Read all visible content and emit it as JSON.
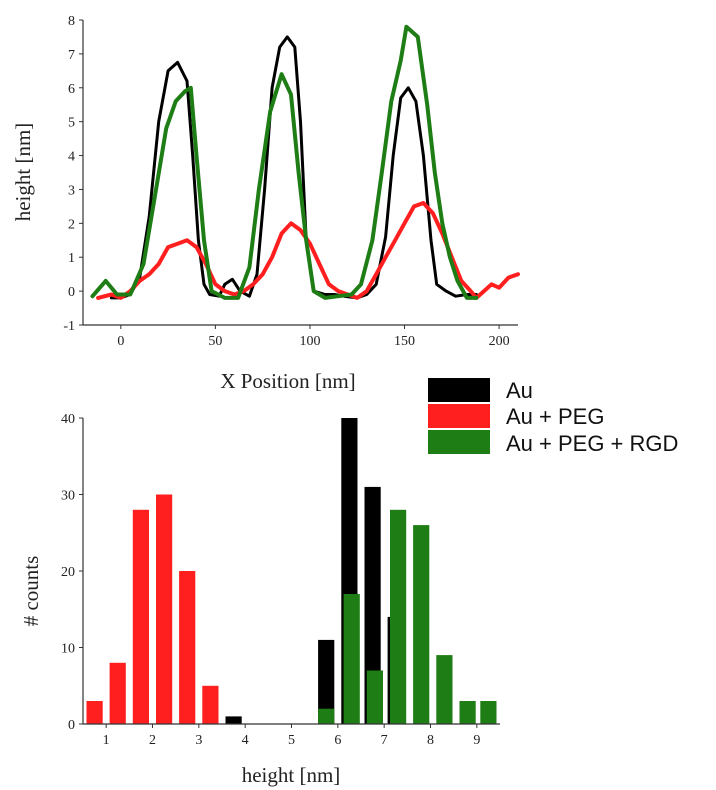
{
  "colors": {
    "Au": "#000000",
    "Au + PEG": "#ff1f1f",
    "Au + PEG + RGD": "#1e7d15",
    "axis": "#333333"
  },
  "legend": {
    "entries": [
      "Au",
      "Au + PEG",
      "Au + PEG + RGD"
    ],
    "placement": "top-right of lower panel"
  },
  "chart_data": [
    {
      "type": "line",
      "xlabel": "X Position [nm]",
      "ylabel": "height [nm]",
      "xlim": [
        -20,
        210
      ],
      "ylim": [
        -1,
        8
      ],
      "xticks": [
        0,
        50,
        100,
        150,
        200
      ],
      "yticks": [
        -1,
        0,
        1,
        2,
        3,
        4,
        5,
        6,
        7,
        8
      ],
      "grid": false,
      "series": [
        {
          "name": "Au",
          "points": [
            [
              -5,
              -0.2
            ],
            [
              0,
              -0.2
            ],
            [
              5,
              -0.1
            ],
            [
              10,
              0.4
            ],
            [
              15,
              2.2
            ],
            [
              20,
              5.0
            ],
            [
              25,
              6.5
            ],
            [
              30,
              6.75
            ],
            [
              35,
              6.2
            ],
            [
              38,
              4.0
            ],
            [
              41,
              1.5
            ],
            [
              44,
              0.2
            ],
            [
              47,
              -0.1
            ],
            [
              52,
              -0.15
            ],
            [
              55,
              0.2
            ],
            [
              59,
              0.35
            ],
            [
              63,
              0.0
            ],
            [
              68,
              -0.15
            ],
            [
              72,
              0.5
            ],
            [
              76,
              3.0
            ],
            [
              80,
              6.0
            ],
            [
              84,
              7.2
            ],
            [
              88,
              7.5
            ],
            [
              92,
              7.2
            ],
            [
              95,
              5.0
            ],
            [
              98,
              1.5
            ],
            [
              102,
              0.0
            ],
            [
              108,
              -0.1
            ],
            [
              113,
              -0.1
            ],
            [
              118,
              -0.15
            ],
            [
              125,
              -0.2
            ],
            [
              130,
              -0.1
            ],
            [
              135,
              0.2
            ],
            [
              140,
              1.6
            ],
            [
              144,
              4.0
            ],
            [
              148,
              5.7
            ],
            [
              152,
              6.0
            ],
            [
              156,
              5.6
            ],
            [
              160,
              4.0
            ],
            [
              164,
              1.5
            ],
            [
              167,
              0.2
            ],
            [
              172,
              0.0
            ],
            [
              177,
              -0.15
            ],
            [
              183,
              -0.1
            ],
            [
              188,
              -0.1
            ]
          ]
        },
        {
          "name": "Au + PEG",
          "points": [
            [
              -12,
              -0.2
            ],
            [
              -5,
              -0.1
            ],
            [
              0,
              -0.2
            ],
            [
              5,
              0.0
            ],
            [
              10,
              0.3
            ],
            [
              15,
              0.5
            ],
            [
              20,
              0.8
            ],
            [
              25,
              1.3
            ],
            [
              30,
              1.4
            ],
            [
              35,
              1.5
            ],
            [
              40,
              1.3
            ],
            [
              45,
              0.8
            ],
            [
              50,
              0.2
            ],
            [
              55,
              0.0
            ],
            [
              60,
              -0.1
            ],
            [
              65,
              0.0
            ],
            [
              70,
              0.2
            ],
            [
              75,
              0.5
            ],
            [
              80,
              1.0
            ],
            [
              85,
              1.7
            ],
            [
              90,
              2.0
            ],
            [
              95,
              1.8
            ],
            [
              100,
              1.4
            ],
            [
              105,
              0.8
            ],
            [
              110,
              0.2
            ],
            [
              115,
              0.0
            ],
            [
              120,
              -0.1
            ],
            [
              125,
              -0.2
            ],
            [
              130,
              0.0
            ],
            [
              135,
              0.5
            ],
            [
              140,
              1.0
            ],
            [
              145,
              1.5
            ],
            [
              150,
              2.0
            ],
            [
              155,
              2.5
            ],
            [
              160,
              2.6
            ],
            [
              165,
              2.3
            ],
            [
              170,
              1.7
            ],
            [
              175,
              1.0
            ],
            [
              180,
              0.3
            ],
            [
              185,
              0.0
            ],
            [
              188,
              -0.2
            ],
            [
              192,
              0.0
            ],
            [
              196,
              0.2
            ],
            [
              200,
              0.1
            ],
            [
              205,
              0.4
            ],
            [
              210,
              0.5
            ]
          ]
        },
        {
          "name": "Au + PEG + RGD",
          "points": [
            [
              -15,
              -0.15
            ],
            [
              -8,
              0.3
            ],
            [
              -2,
              -0.1
            ],
            [
              5,
              -0.1
            ],
            [
              12,
              0.8
            ],
            [
              18,
              2.8
            ],
            [
              24,
              4.8
            ],
            [
              29,
              5.6
            ],
            [
              34,
              5.9
            ],
            [
              37,
              6.0
            ],
            [
              40,
              4.0
            ],
            [
              44,
              1.5
            ],
            [
              48,
              0.0
            ],
            [
              55,
              -0.2
            ],
            [
              62,
              -0.2
            ],
            [
              68,
              0.7
            ],
            [
              73,
              3.0
            ],
            [
              79,
              5.3
            ],
            [
              85,
              6.4
            ],
            [
              90,
              5.8
            ],
            [
              94,
              3.5
            ],
            [
              98,
              1.5
            ],
            [
              102,
              0.0
            ],
            [
              108,
              -0.2
            ],
            [
              115,
              -0.15
            ],
            [
              122,
              -0.1
            ],
            [
              127,
              0.2
            ],
            [
              133,
              1.5
            ],
            [
              138,
              3.5
            ],
            [
              143,
              5.6
            ],
            [
              148,
              6.8
            ],
            [
              151,
              7.8
            ],
            [
              157,
              7.5
            ],
            [
              162,
              5.5
            ],
            [
              166,
              3.5
            ],
            [
              170,
              2.0
            ],
            [
              174,
              1.0
            ],
            [
              178,
              0.3
            ],
            [
              183,
              -0.2
            ],
            [
              188,
              -0.2
            ]
          ]
        }
      ]
    },
    {
      "type": "bar",
      "xlabel": "height [nm]",
      "ylabel": "# counts",
      "xlim": [
        0.5,
        9.5
      ],
      "ylim": [
        0,
        40
      ],
      "xticks": [
        1,
        2,
        3,
        4,
        5,
        6,
        7,
        8,
        9
      ],
      "yticks": [
        0,
        10,
        20,
        30,
        40
      ],
      "grid": false,
      "bar_width": 0.35,
      "series": [
        {
          "name": "Au",
          "bars": [
            [
              3.75,
              1
            ],
            [
              5.75,
              11
            ],
            [
              6.25,
              40
            ],
            [
              6.75,
              31
            ],
            [
              7.25,
              14
            ]
          ]
        },
        {
          "name": "Au + PEG",
          "bars": [
            [
              0.75,
              3
            ],
            [
              1.25,
              8
            ],
            [
              1.75,
              28
            ],
            [
              2.25,
              30
            ],
            [
              2.75,
              20
            ],
            [
              3.25,
              5
            ]
          ]
        },
        {
          "name": "Au + PEG + RGD",
          "bars": [
            [
              5.75,
              2
            ],
            [
              6.3,
              17
            ],
            [
              6.8,
              7
            ],
            [
              7.3,
              28
            ],
            [
              7.8,
              26
            ],
            [
              8.3,
              9
            ],
            [
              8.8,
              3
            ],
            [
              9.25,
              3
            ]
          ]
        }
      ]
    }
  ]
}
